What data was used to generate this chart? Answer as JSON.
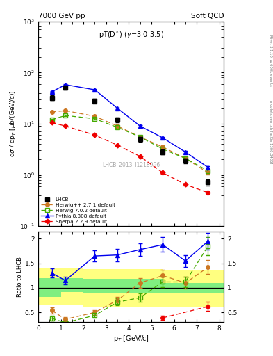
{
  "title_left": "7000 GeV pp",
  "title_right": "Soft QCD",
  "panel_title": "pT(D*) (y=3.0-3.5)",
  "watermark": "LHCB_2013_I1218996",
  "right_label": "Rivet 3.1.10, ≥ 600k events",
  "right_label2": "mcplots.cern.ch [arXiv:1306.3436]",
  "lhcb_x": [
    0.6,
    1.2,
    2.5,
    3.5,
    4.5,
    5.5,
    6.5,
    7.5
  ],
  "lhcb_y": [
    32.0,
    50.0,
    28.0,
    12.0,
    5.0,
    2.8,
    1.9,
    0.72
  ],
  "lhcb_yerr": [
    3.5,
    4.5,
    3.0,
    1.3,
    0.55,
    0.3,
    0.22,
    0.1
  ],
  "herwig1_x": [
    0.6,
    1.2,
    2.5,
    3.5,
    4.5,
    5.5,
    6.5,
    7.5
  ],
  "herwig1_y": [
    17.0,
    18.0,
    14.0,
    9.0,
    5.5,
    3.5,
    2.1,
    1.1
  ],
  "herwig1_yerr": [
    0.5,
    0.5,
    0.4,
    0.3,
    0.2,
    0.15,
    0.1,
    0.07
  ],
  "herwig2_x": [
    0.6,
    1.2,
    2.5,
    3.5,
    4.5,
    5.5,
    6.5,
    7.5
  ],
  "herwig2_y": [
    12.0,
    14.5,
    12.5,
    8.5,
    5.5,
    3.2,
    2.1,
    1.2
  ],
  "herwig2_yerr": [
    0.4,
    0.4,
    0.35,
    0.28,
    0.18,
    0.13,
    0.09,
    0.06
  ],
  "pythia_x": [
    0.6,
    1.2,
    2.5,
    3.5,
    4.5,
    5.5,
    6.5,
    7.5
  ],
  "pythia_y": [
    42.0,
    58.0,
    46.0,
    20.0,
    9.0,
    5.3,
    2.8,
    1.4
  ],
  "pythia_yerr": [
    1.2,
    1.5,
    1.2,
    0.6,
    0.28,
    0.18,
    0.1,
    0.07
  ],
  "sherpa_x": [
    0.6,
    1.2,
    2.5,
    3.5,
    4.5,
    5.5,
    6.5,
    7.5
  ],
  "sherpa_y": [
    10.5,
    9.0,
    6.0,
    3.8,
    2.3,
    1.1,
    0.65,
    0.45
  ],
  "sherpa_yerr": [
    0.3,
    0.3,
    0.2,
    0.15,
    0.09,
    0.05,
    0.03,
    0.025
  ],
  "ratio_herwig1_x": [
    0.6,
    1.2,
    2.5,
    3.5,
    4.5,
    5.5,
    6.5,
    7.5
  ],
  "ratio_herwig1_y": [
    0.54,
    0.36,
    0.5,
    0.75,
    1.1,
    1.25,
    1.1,
    1.42
  ],
  "ratio_herwig1_yerr": [
    0.06,
    0.04,
    0.05,
    0.07,
    0.1,
    0.12,
    0.12,
    0.14
  ],
  "ratio_herwig2_x": [
    0.6,
    1.2,
    2.5,
    3.5,
    4.5,
    5.5,
    6.5,
    7.5
  ],
  "ratio_herwig2_y": [
    0.38,
    0.29,
    0.44,
    0.71,
    0.8,
    1.12,
    1.12,
    1.85
  ],
  "ratio_herwig2_yerr": [
    0.05,
    0.04,
    0.05,
    0.07,
    0.08,
    0.11,
    0.11,
    0.18
  ],
  "ratio_pythia_x": [
    0.6,
    1.2,
    2.5,
    3.5,
    4.5,
    5.5,
    6.5,
    7.5
  ],
  "ratio_pythia_y": [
    1.3,
    1.15,
    1.65,
    1.67,
    1.78,
    1.88,
    1.55,
    1.95
  ],
  "ratio_pythia_yerr": [
    0.09,
    0.08,
    0.11,
    0.13,
    0.13,
    0.15,
    0.12,
    0.17
  ],
  "ratio_sherpa_x": [
    5.5
  ],
  "ratio_sherpa_y": [
    0.39
  ],
  "ratio_sherpa_yerr": [
    0.04
  ],
  "ratio_sherpa2_x": [
    7.5
  ],
  "ratio_sherpa2_y": [
    0.62
  ],
  "ratio_sherpa2_yerr": [
    0.09
  ],
  "band_edges": [
    0.0,
    1.0,
    2.0,
    3.5,
    5.5,
    7.0,
    8.2
  ],
  "band_green_lo": [
    0.82,
    0.92,
    0.88,
    0.88,
    0.88,
    0.88
  ],
  "band_green_hi": [
    1.2,
    1.2,
    1.18,
    1.18,
    1.1,
    1.1
  ],
  "band_yellow_lo": [
    0.65,
    0.65,
    0.62,
    0.62,
    0.62,
    0.62
  ],
  "band_yellow_hi": [
    1.4,
    1.4,
    1.38,
    1.38,
    1.35,
    1.35
  ],
  "colors": {
    "lhcb": "#000000",
    "herwig1": "#cc7722",
    "herwig2": "#44aa00",
    "pythia": "#0000ee",
    "sherpa": "#ee0000"
  },
  "ylim_main": [
    0.1,
    1000
  ],
  "ylim_ratio": [
    0.3,
    2.15
  ],
  "xlim": [
    0.0,
    8.2
  ]
}
